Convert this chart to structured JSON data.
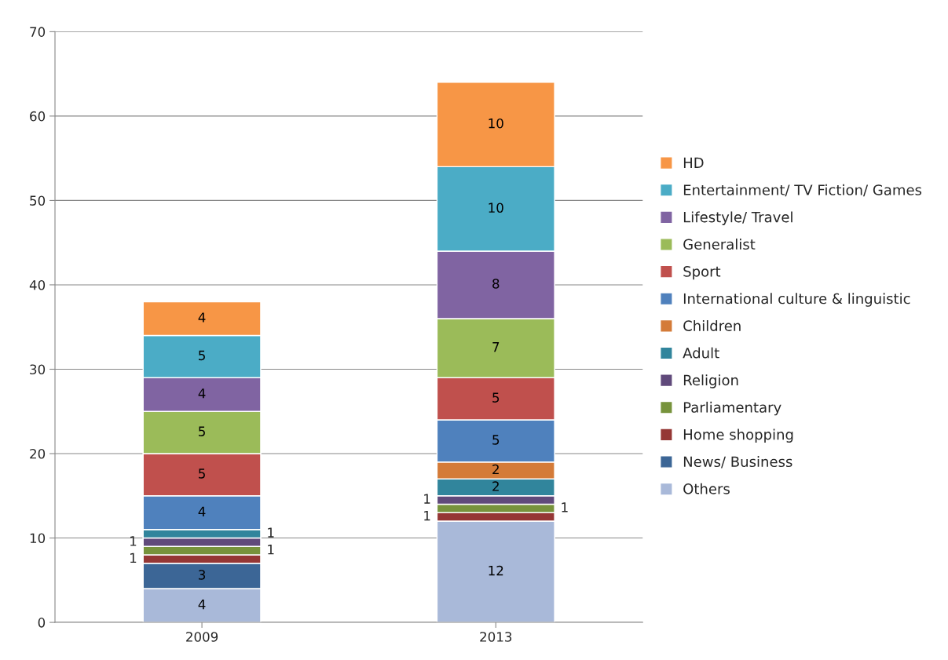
{
  "chart_data": {
    "type": "bar",
    "stacked": true,
    "categories": [
      "2009",
      "2013"
    ],
    "series": [
      {
        "name": "Others",
        "color": "#a9b9d9",
        "values": [
          4,
          12
        ]
      },
      {
        "name": "News/ Business",
        "color": "#3c6696",
        "values": [
          3,
          null
        ]
      },
      {
        "name": "Home shopping",
        "color": "#953735",
        "values": [
          1,
          1
        ]
      },
      {
        "name": "Parliamentary",
        "color": "#77933c",
        "values": [
          1,
          1
        ]
      },
      {
        "name": "Religion",
        "color": "#604a7b",
        "values": [
          1,
          1
        ]
      },
      {
        "name": "Adult",
        "color": "#31859c",
        "values": [
          1,
          2
        ]
      },
      {
        "name": "Children",
        "color": "#d47b38",
        "values": [
          null,
          2
        ]
      },
      {
        "name": "International culture & linguistic",
        "color": "#4f81bd",
        "values": [
          4,
          5
        ]
      },
      {
        "name": "Sport",
        "color": "#c0504d",
        "values": [
          5,
          5
        ]
      },
      {
        "name": "Generalist",
        "color": "#9bbb59",
        "values": [
          5,
          7
        ]
      },
      {
        "name": "Lifestyle/ Travel",
        "color": "#8064a2",
        "values": [
          4,
          8
        ]
      },
      {
        "name": "Entertainment/ TV Fiction/ Games",
        "color": "#4bacc6",
        "values": [
          5,
          10
        ]
      },
      {
        "name": "HD",
        "color": "#f79646",
        "values": [
          4,
          10
        ]
      }
    ],
    "ylim": [
      0,
      70
    ],
    "yticks": [
      0,
      10,
      20,
      30,
      40,
      50,
      60,
      70
    ],
    "grid": "y",
    "legend": "right",
    "data_labels": true
  }
}
